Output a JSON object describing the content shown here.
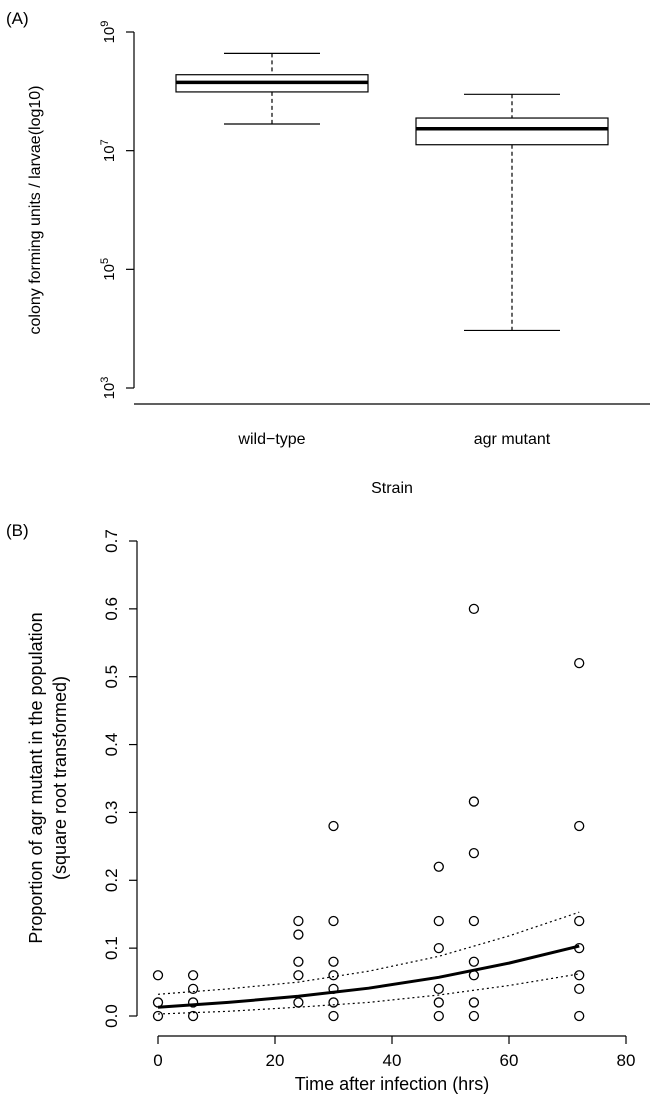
{
  "panels": {
    "a_label": "(A)",
    "b_label": "(B)"
  },
  "chart_data": [
    {
      "type": "boxplot",
      "panel": "(A)",
      "xlabel": "Strain",
      "ylabel": "colony forming units / larvae(log10)",
      "y_scale": "log10",
      "ylim_log10": [
        3,
        9
      ],
      "yticks": [
        {
          "base": "10",
          "exp": "9"
        },
        {
          "base": "10",
          "exp": "7"
        },
        {
          "base": "10",
          "exp": "5"
        },
        {
          "base": "10",
          "exp": "3"
        }
      ],
      "categories": [
        "wild−type",
        "agr mutant"
      ],
      "boxes": [
        {
          "name": "wild−type",
          "min_log10": 7.45,
          "q1_log10": 7.99,
          "median_log10": 8.15,
          "q3_log10": 8.28,
          "max_log10": 8.64
        },
        {
          "name": "agr mutant",
          "min_log10": 3.97,
          "q1_log10": 7.1,
          "median_log10": 7.37,
          "q3_log10": 7.55,
          "max_log10": 7.95
        }
      ]
    },
    {
      "type": "scatter",
      "panel": "(B)",
      "xlabel": "Time after infection (hrs)",
      "ylabel": "Proportion of agr mutant in the population",
      "ylabel2": "(square root transformed)",
      "xlim": [
        0,
        80
      ],
      "ylim": [
        0,
        0.7
      ],
      "xticks": [
        "0",
        "20",
        "40",
        "60",
        "80"
      ],
      "yticks": [
        "0.0",
        "0.1",
        "0.2",
        "0.3",
        "0.4",
        "0.5",
        "0.6",
        "0.7"
      ],
      "points": [
        [
          0,
          0.06
        ],
        [
          0,
          0.02
        ],
        [
          0,
          0.0
        ],
        [
          6,
          0.06
        ],
        [
          6,
          0.04
        ],
        [
          6,
          0.02
        ],
        [
          6,
          0.0
        ],
        [
          24,
          0.14
        ],
        [
          24,
          0.12
        ],
        [
          24,
          0.08
        ],
        [
          24,
          0.06
        ],
        [
          24,
          0.02
        ],
        [
          30,
          0.28
        ],
        [
          30,
          0.14
        ],
        [
          30,
          0.08
        ],
        [
          30,
          0.06
        ],
        [
          30,
          0.04
        ],
        [
          30,
          0.02
        ],
        [
          30,
          0.0
        ],
        [
          48,
          0.22
        ],
        [
          48,
          0.14
        ],
        [
          48,
          0.1
        ],
        [
          48,
          0.04
        ],
        [
          48,
          0.02
        ],
        [
          48,
          0.0
        ],
        [
          54,
          0.6
        ],
        [
          54,
          0.316
        ],
        [
          54,
          0.24
        ],
        [
          54,
          0.14
        ],
        [
          54,
          0.08
        ],
        [
          54,
          0.06
        ],
        [
          54,
          0.02
        ],
        [
          54,
          0.0
        ],
        [
          72,
          0.52
        ],
        [
          72,
          0.28
        ],
        [
          72,
          0.14
        ],
        [
          72,
          0.1
        ],
        [
          72,
          0.06
        ],
        [
          72,
          0.04
        ],
        [
          72,
          0.0
        ]
      ],
      "fit": {
        "x": [
          0,
          12,
          24,
          36,
          48,
          60,
          72
        ],
        "y": [
          0.013,
          0.02,
          0.029,
          0.041,
          0.057,
          0.078,
          0.103
        ]
      },
      "ci_upper": {
        "x": [
          0,
          12,
          24,
          36,
          48,
          60,
          72
        ],
        "y": [
          0.032,
          0.04,
          0.05,
          0.066,
          0.088,
          0.118,
          0.153
        ]
      },
      "ci_lower": {
        "x": [
          0,
          12,
          24,
          36,
          48,
          60,
          72
        ],
        "y": [
          0.003,
          0.007,
          0.013,
          0.02,
          0.031,
          0.045,
          0.062
        ]
      }
    }
  ]
}
